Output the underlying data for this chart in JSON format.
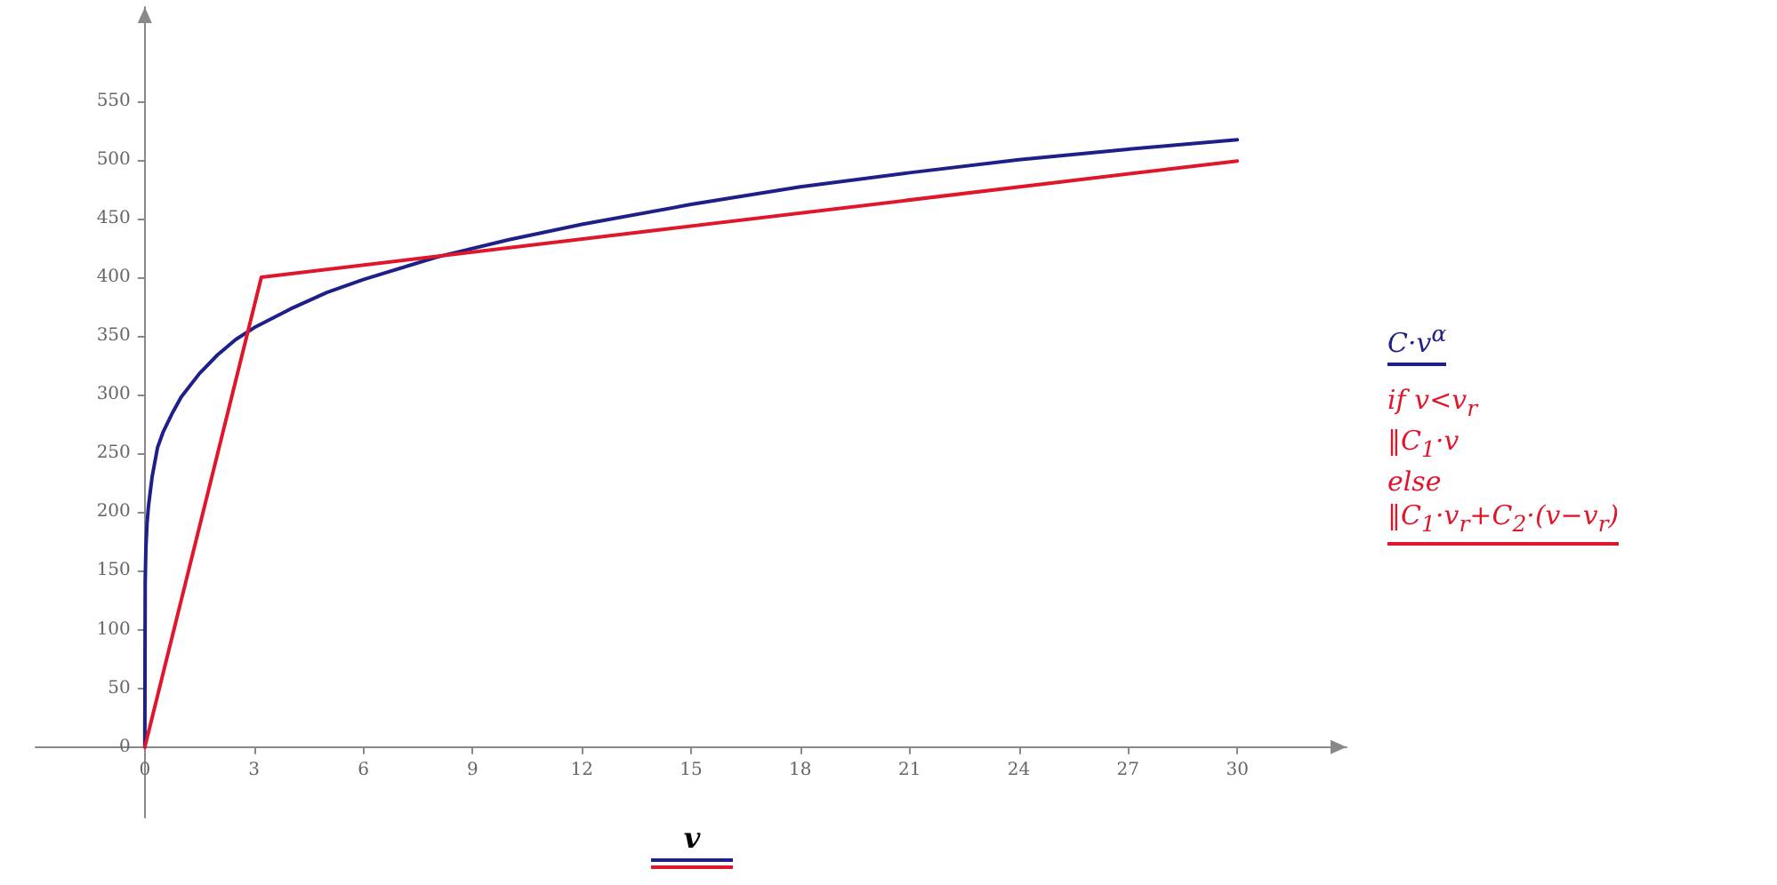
{
  "chart_data": {
    "type": "line",
    "xlabel": "v",
    "xlim": [
      -3,
      33
    ],
    "ylim": [
      -60,
      630
    ],
    "xticks": [
      0,
      3,
      6,
      9,
      12,
      15,
      18,
      21,
      24,
      27,
      30
    ],
    "yticks": [
      0,
      50,
      100,
      150,
      200,
      250,
      300,
      350,
      400,
      450,
      500,
      550
    ],
    "grid": false,
    "legend": "right",
    "marker": "none",
    "line_style": "solid",
    "series": [
      {
        "name": "C·v$^{α}$",
        "color": "#1f1f8a",
        "x": [
          0,
          0.01,
          0.03,
          0.06,
          0.1,
          0.2,
          0.35,
          0.5,
          0.75,
          1,
          1.5,
          2,
          2.5,
          3,
          4,
          5,
          6,
          8,
          10,
          12,
          15,
          18,
          21,
          24,
          27,
          30
        ],
        "values": [
          0,
          140,
          170,
          190,
          205,
          230,
          255,
          268,
          284,
          298,
          318,
          334,
          347,
          357,
          373,
          387,
          398,
          417,
          432,
          445,
          462,
          477,
          489,
          500,
          509,
          517
        ]
      },
      {
        "name": "if v<v$_{r}$\n‖C$_{1}$·v\nelse\n‖C$_{1}$·v$_{r}$+C$_{2}$·(v−v$_{r}$)",
        "color": "#e0162b",
        "x": [
          0,
          3.2,
          30
        ],
        "values": [
          0,
          400,
          499
        ]
      }
    ]
  }
}
